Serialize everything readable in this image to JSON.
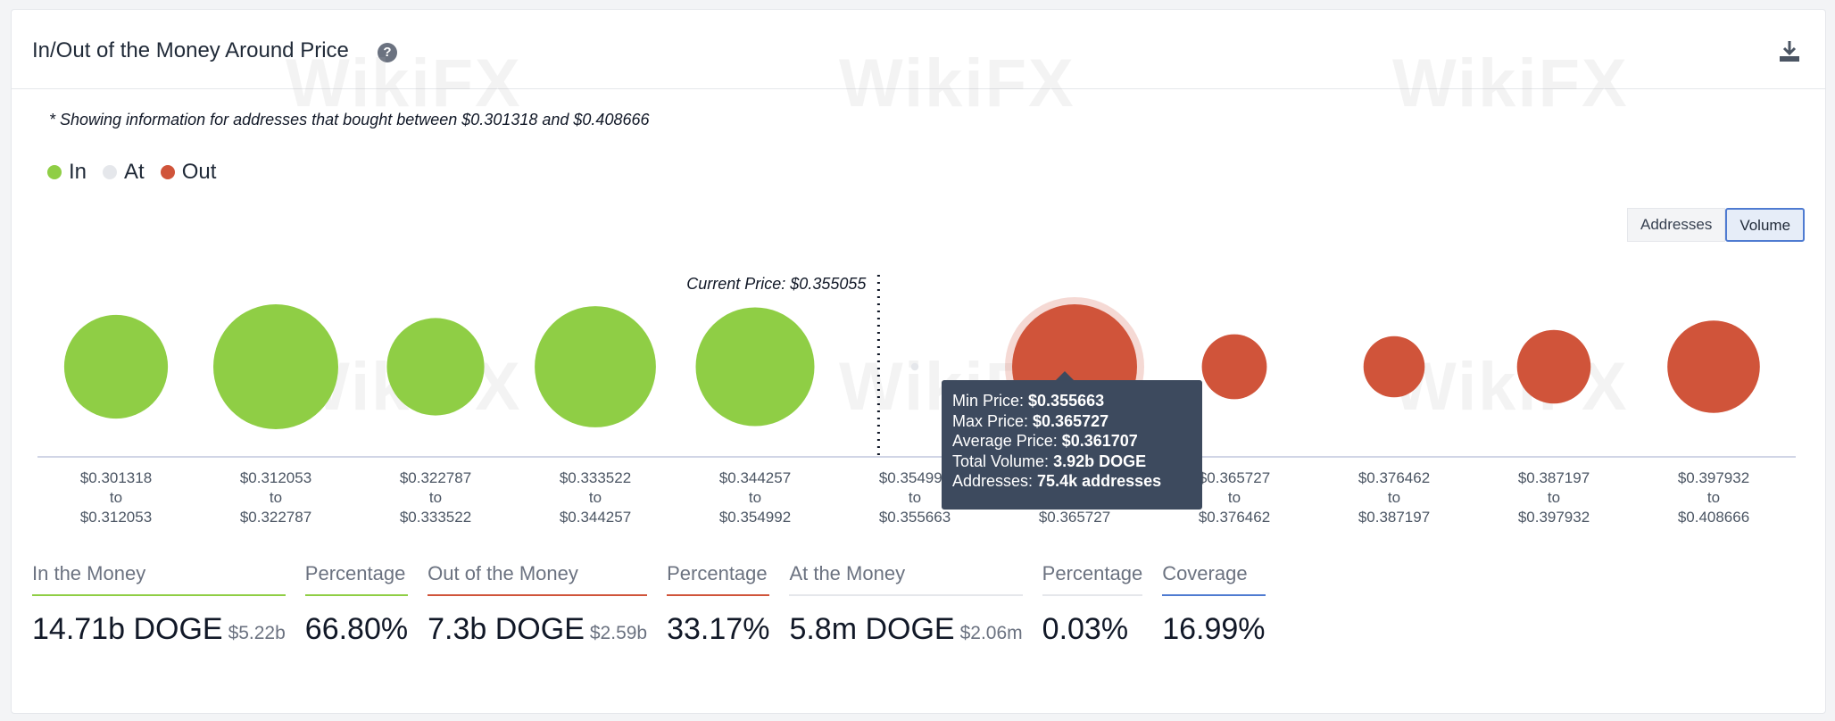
{
  "header": {
    "title": "In/Out of the Money Around Price",
    "help_icon": "question-circle-icon",
    "download_icon": "download-icon"
  },
  "note": "* Showing information for addresses that bought between $0.301318 and $0.408666",
  "legend": [
    {
      "label": "In",
      "color": "#8fce45"
    },
    {
      "label": "At",
      "color": "#e5e7eb"
    },
    {
      "label": "Out",
      "color": "#d0543a"
    }
  ],
  "toggle": {
    "addresses": "Addresses",
    "volume": "Volume",
    "selected": "Volume"
  },
  "chart_data": {
    "type": "bubble",
    "current_price_label": "Current Price: $0.355055",
    "current_price": 0.355055,
    "bins": [
      {
        "from": "$0.301318",
        "to_word": "to",
        "to": "$0.312053",
        "status": "In",
        "size": 0.83
      },
      {
        "from": "$0.312053",
        "to_word": "to",
        "to": "$0.322787",
        "status": "In",
        "size": 1.0
      },
      {
        "from": "$0.322787",
        "to_word": "to",
        "to": "$0.333522",
        "status": "In",
        "size": 0.78
      },
      {
        "from": "$0.333522",
        "to_word": "to",
        "to": "$0.344257",
        "status": "In",
        "size": 0.97
      },
      {
        "from": "$0.344257",
        "to_word": "to",
        "to": "$0.354992",
        "status": "In",
        "size": 0.95
      },
      {
        "from": "$0.354992",
        "to_word": "to",
        "to": "$0.355663",
        "status": "At",
        "size": 0.06
      },
      {
        "from": "$0.355663",
        "to_word": "to",
        "to": "$0.365727",
        "status": "Out",
        "size": 1.0,
        "highlighted": true
      },
      {
        "from": "$0.365727",
        "to_word": "to",
        "to": "$0.376462",
        "status": "Out",
        "size": 0.52
      },
      {
        "from": "$0.376462",
        "to_word": "to",
        "to": "$0.387197",
        "status": "Out",
        "size": 0.49
      },
      {
        "from": "$0.387197",
        "to_word": "to",
        "to": "$0.397932",
        "status": "Out",
        "size": 0.59
      },
      {
        "from": "$0.397932",
        "to_word": "to",
        "to": "$0.408666",
        "status": "Out",
        "size": 0.74
      }
    ],
    "colors": {
      "In": "#8fce45",
      "At": "#e5e7eb",
      "Out": "#d0543a"
    }
  },
  "tooltip": {
    "rows": [
      {
        "label": "Min Price: ",
        "value": "$0.355663"
      },
      {
        "label": "Max Price: ",
        "value": "$0.365727"
      },
      {
        "label": "Average Price: ",
        "value": "$0.361707"
      },
      {
        "label": "Total Volume: ",
        "value": "3.92b DOGE"
      },
      {
        "label": "Addresses: ",
        "value": "75.4k addresses"
      }
    ]
  },
  "stats": [
    {
      "label": "In the Money",
      "value": "14.71b DOGE",
      "sub": "$5.22b",
      "color": "#8fce45"
    },
    {
      "label": "Percentage",
      "value": "66.80%",
      "sub": "",
      "color": "#8fce45"
    },
    {
      "label": "Out of the Money",
      "value": "7.3b DOGE",
      "sub": "$2.59b",
      "color": "#d0543a"
    },
    {
      "label": "Percentage",
      "value": "33.17%",
      "sub": "",
      "color": "#d0543a"
    },
    {
      "label": "At the Money",
      "value": "5.8m DOGE",
      "sub": "$2.06m",
      "color": "#e5e7eb"
    },
    {
      "label": "Percentage",
      "value": "0.03%",
      "sub": "",
      "color": "#e5e7eb"
    },
    {
      "label": "Coverage",
      "value": "16.99%",
      "sub": "",
      "color": "#4f7bd1"
    }
  ],
  "watermark": "WikiFX"
}
